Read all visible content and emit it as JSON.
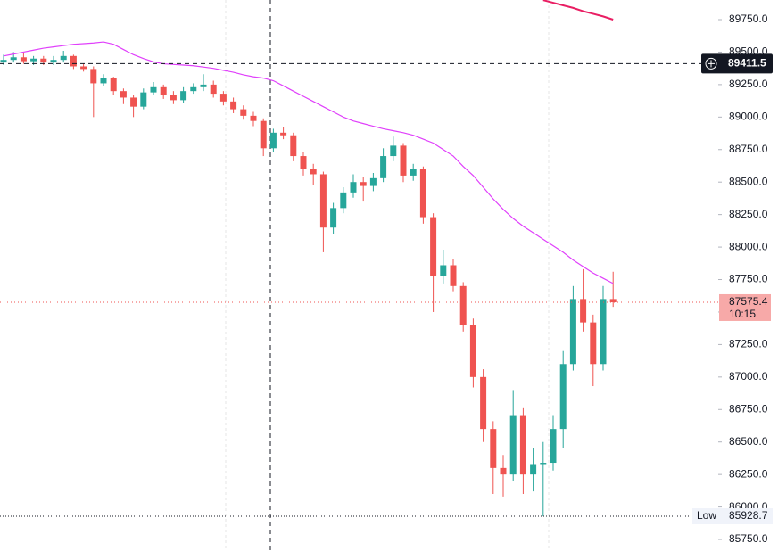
{
  "chart_data": {
    "type": "candlestick",
    "open": [
      89420,
      89440,
      89460,
      89430,
      89450,
      89420,
      89440,
      89470,
      89390,
      89370,
      89260,
      89300,
      89200,
      89150,
      89080,
      89190,
      89230,
      89170,
      89130,
      89200,
      89230,
      89250,
      89180,
      89120,
      89060,
      89010,
      88970,
      88760,
      88880,
      88860,
      88700,
      88600,
      88560,
      88150,
      88300,
      88420,
      88500,
      88470,
      88530,
      88700,
      88780,
      88550,
      88600,
      88230,
      87780,
      87860,
      87700,
      87400,
      87000,
      86600,
      86300,
      86250,
      86700,
      86250,
      86330,
      86340,
      86600,
      87100,
      87600,
      87420,
      87100,
      87600
    ],
    "high": [
      89480,
      89500,
      89490,
      89470,
      89470,
      89470,
      89510,
      89480,
      89410,
      89390,
      89330,
      89310,
      89220,
      89170,
      89220,
      89270,
      89250,
      89200,
      89230,
      89260,
      89330,
      89280,
      89200,
      89150,
      89090,
      89040,
      88990,
      88910,
      88920,
      88880,
      88730,
      88640,
      88580,
      88340,
      88460,
      88560,
      88540,
      88570,
      88760,
      88850,
      88800,
      88640,
      88620,
      88260,
      87980,
      87910,
      87730,
      87450,
      87060,
      86660,
      86400,
      86900,
      86760,
      86450,
      86500,
      86700,
      87200,
      87700,
      87830,
      87480,
      87700,
      87810
    ],
    "low": [
      89400,
      89420,
      89410,
      89400,
      89400,
      89400,
      89420,
      89370,
      89350,
      89000,
      89240,
      89170,
      89100,
      89000,
      89060,
      89170,
      89140,
      89100,
      89110,
      89180,
      89200,
      89150,
      89090,
      89030,
      88980,
      88930,
      88700,
      88730,
      88830,
      88660,
      88550,
      88480,
      87960,
      88100,
      88260,
      88380,
      88350,
      88430,
      88500,
      88660,
      88500,
      88510,
      88180,
      87500,
      87720,
      87660,
      87350,
      86920,
      86500,
      86100,
      86080,
      86200,
      86100,
      86120,
      85929,
      86280,
      86450,
      87050,
      87350,
      86930,
      87050,
      87540
    ],
    "close": [
      89440,
      89460,
      89430,
      89450,
      89420,
      89440,
      89470,
      89390,
      89370,
      89260,
      89300,
      89200,
      89150,
      89080,
      89190,
      89230,
      89170,
      89130,
      89200,
      89230,
      89250,
      89180,
      89120,
      89060,
      89010,
      88970,
      88760,
      88880,
      88860,
      88700,
      88600,
      88560,
      88150,
      88300,
      88420,
      88500,
      88470,
      88530,
      88700,
      88780,
      88550,
      88600,
      88230,
      87780,
      87860,
      87700,
      87400,
      87000,
      86600,
      86300,
      86250,
      86700,
      86250,
      86330,
      86340,
      86600,
      87100,
      87600,
      87420,
      87100,
      87600,
      87575
    ],
    "up_color": "#26a69a",
    "down_color": "#ef5350",
    "series": [
      {
        "color": "#e040fb",
        "values": [
          89470,
          89485,
          89500,
          89515,
          89530,
          89540,
          89550,
          89560,
          89565,
          89570,
          89578,
          89560,
          89520,
          89480,
          89450,
          89425,
          89410,
          89405,
          89400,
          89395,
          89385,
          89375,
          89360,
          89345,
          89325,
          89310,
          89300,
          89280,
          89240,
          89200,
          89160,
          89120,
          89080,
          89040,
          89000,
          88970,
          88950,
          88930,
          88910,
          88895,
          88880,
          88860,
          88830,
          88800,
          88750,
          88700,
          88620,
          88550,
          88460,
          88370,
          88290,
          88220,
          88160,
          88110,
          88060,
          88010,
          87960,
          87900,
          87850,
          87800,
          87760,
          87720
        ]
      },
      {
        "color": "#e91e63",
        "values": [
          null,
          null,
          null,
          null,
          null,
          null,
          null,
          null,
          null,
          null,
          null,
          null,
          null,
          null,
          null,
          null,
          null,
          null,
          null,
          null,
          null,
          null,
          null,
          null,
          null,
          null,
          null,
          null,
          null,
          null,
          null,
          null,
          null,
          null,
          null,
          null,
          null,
          null,
          null,
          null,
          null,
          null,
          null,
          null,
          null,
          null,
          null,
          null,
          null,
          null,
          null,
          null,
          null,
          null,
          89900,
          89880,
          89860,
          89840,
          89815,
          89795,
          89775,
          89750
        ]
      }
    ],
    "ylim": [
      85661,
      89901
    ],
    "yticks": [
      {
        "value": 85750,
        "label": "85750.0"
      },
      {
        "value": 86000,
        "label": "86000.0"
      },
      {
        "value": 86250,
        "label": "86250.0"
      },
      {
        "value": 86500,
        "label": "86500.0"
      },
      {
        "value": 86750,
        "label": "86750.0"
      },
      {
        "value": 87000,
        "label": "87000.0"
      },
      {
        "value": 87250,
        "label": "87250.0"
      },
      {
        "value": 87500,
        "label": "87500.0"
      },
      {
        "value": 87750,
        "label": "87750.0"
      },
      {
        "value": 88000,
        "label": "88000.0"
      },
      {
        "value": 88250,
        "label": "88250.0"
      },
      {
        "value": 88500,
        "label": "88500.0"
      },
      {
        "value": 88750,
        "label": "88750.0"
      },
      {
        "value": 89000,
        "label": "89000.0"
      },
      {
        "value": 89250,
        "label": "89250.0"
      },
      {
        "value": 89500,
        "label": "89500.0"
      },
      {
        "value": 89750,
        "label": "89750.0"
      }
    ],
    "last_price": 87575.4,
    "countdown": "10:15",
    "crosshair_price": 89411.5,
    "low_text": "Low",
    "low_price": 85928.7
  }
}
